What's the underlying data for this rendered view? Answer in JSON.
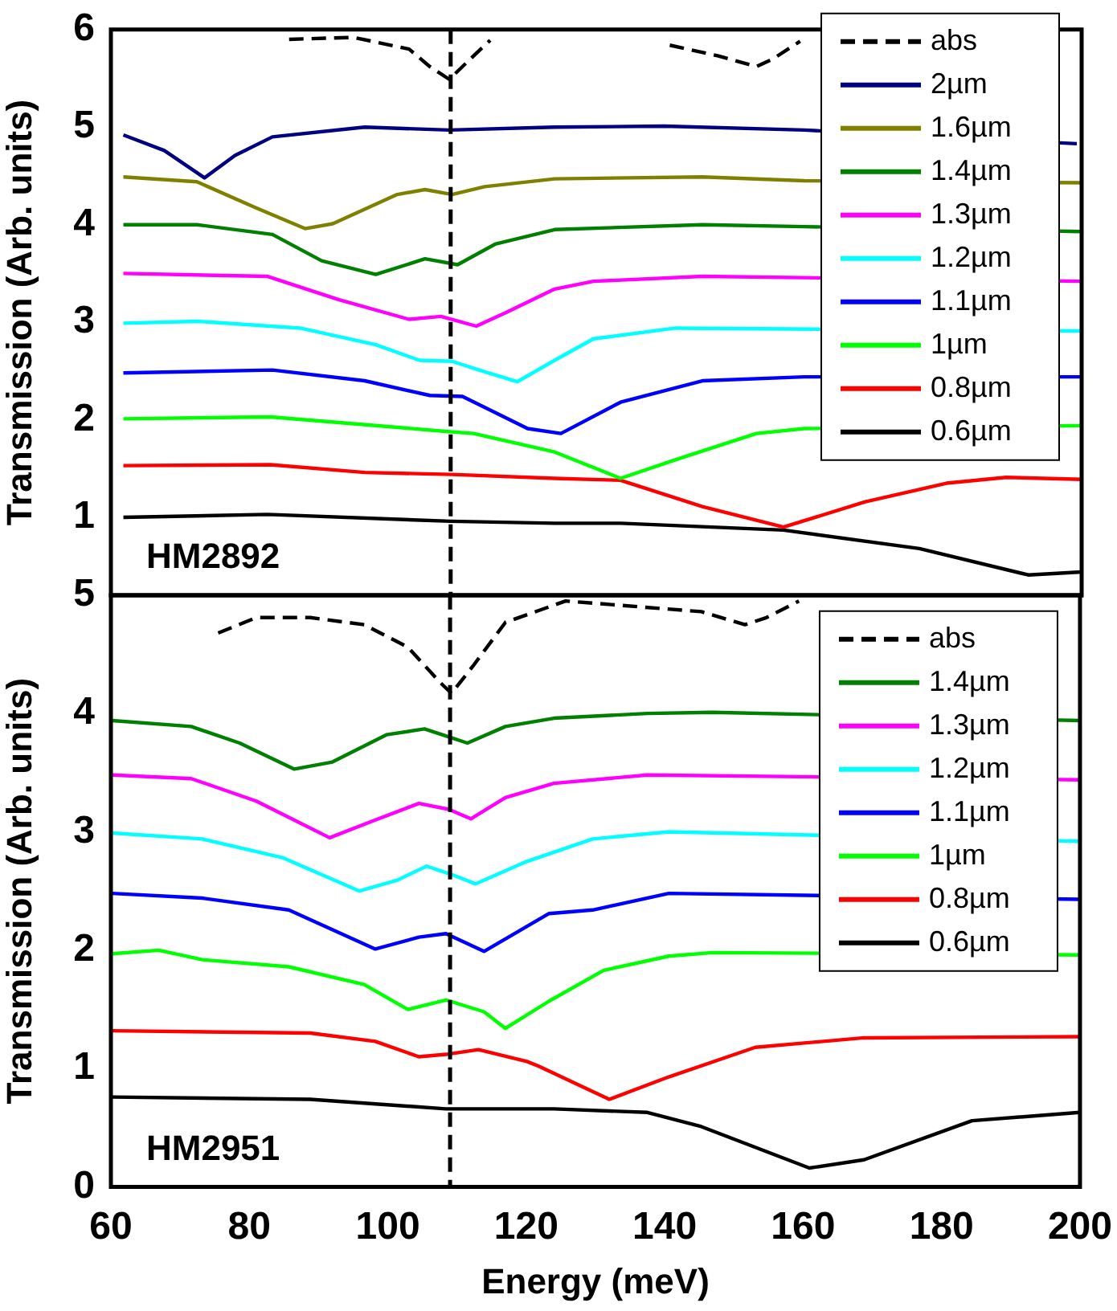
{
  "chart_data": [
    {
      "type": "line",
      "xlim": [
        60,
        200
      ],
      "xticks": [
        60,
        80,
        100,
        120,
        140,
        160,
        180,
        200
      ],
      "ylim": [
        0.2,
        6
      ],
      "yticks": [
        1,
        2,
        3,
        4,
        5,
        6
      ],
      "ylabel": "Transmission (Arb. units)",
      "tick_labels": "y",
      "grid": false,
      "legend": "top right",
      "marker": "none",
      "annotations": [
        "HM2892"
      ],
      "ref_lines": [
        {
          "axis": "x",
          "value": 109,
          "color": "#000000",
          "line_style": "dashed"
        }
      ],
      "series": [
        {
          "name": "abs",
          "color": "#000000",
          "line_style": "dashed",
          "x": [
            85.7,
            95,
            103,
            106,
            108.8,
            112.3,
            114.7,
            118,
            140.6,
            147.6,
            153.1,
            155.5,
            159.4
          ],
          "values": [
            5.9,
            5.92,
            5.8,
            5.62,
            5.49,
            5.73,
            5.89,
            null,
            5.84,
            5.73,
            5.62,
            5.7,
            5.88
          ]
        },
        {
          "name": "2µm",
          "color": "#000080",
          "x": [
            61.8,
            67.7,
            73.5,
            77.9,
            83.3,
            96.6,
            108.8,
            124,
            139.8,
            160,
            199.3
          ],
          "values": [
            4.92,
            4.76,
            4.48,
            4.71,
            4.9,
            5.0,
            4.97,
            5.0,
            5.01,
            4.97,
            4.83
          ]
        },
        {
          "name": "1.6µm",
          "color": "#808000",
          "x": [
            61.8,
            72.4,
            81,
            88,
            92,
            101.3,
            105.3,
            109.2,
            113.9,
            124,
            145.3,
            160,
            200
          ],
          "values": [
            4.49,
            4.44,
            4.17,
            3.96,
            4.01,
            4.31,
            4.36,
            4.31,
            4.39,
            4.47,
            4.49,
            4.45,
            4.43
          ]
        },
        {
          "name": "1.4µm",
          "color": "#008000",
          "x": [
            61.8,
            72.4,
            83.3,
            90.4,
            98.2,
            105.3,
            110,
            115.4,
            124,
            145.3,
            160,
            200
          ],
          "values": [
            4.0,
            4.0,
            3.9,
            3.63,
            3.49,
            3.65,
            3.59,
            3.8,
            3.95,
            4.0,
            3.98,
            3.93
          ]
        },
        {
          "name": "1.3µm",
          "color": "#ff00ff",
          "x": [
            61.8,
            82.6,
            92.9,
            103,
            107.6,
            112.7,
            117,
            124,
            129.6,
            145.3,
            200
          ],
          "values": [
            3.5,
            3.47,
            3.23,
            3.03,
            3.06,
            2.96,
            3.1,
            3.34,
            3.42,
            3.47,
            3.42
          ]
        },
        {
          "name": "1.2µm",
          "color": "#00ffff",
          "x": [
            61.8,
            72.4,
            87.3,
            98.2,
            104.5,
            109.2,
            113.1,
            118.6,
            124,
            129.6,
            141.4,
            200
          ],
          "values": [
            2.99,
            3.01,
            2.94,
            2.77,
            2.61,
            2.6,
            2.51,
            2.39,
            2.61,
            2.83,
            2.94,
            2.91
          ]
        },
        {
          "name": "1.1µm",
          "color": "#0000ff",
          "x": [
            61.8,
            83.3,
            96.6,
            106,
            110.7,
            120.1,
            124.9,
            133.5,
            145.3,
            160,
            200
          ],
          "values": [
            2.48,
            2.51,
            2.4,
            2.25,
            2.24,
            1.91,
            1.86,
            2.18,
            2.4,
            2.44,
            2.44
          ]
        },
        {
          "name": "1µm",
          "color": "#00ff00",
          "x": [
            61.8,
            83,
            106.8,
            112.3,
            124,
            133.5,
            141.4,
            153.1,
            160,
            200
          ],
          "values": [
            2.01,
            2.03,
            1.89,
            1.86,
            1.67,
            1.4,
            1.59,
            1.86,
            1.91,
            1.94
          ]
        },
        {
          "name": "0.8µm",
          "color": "#ff0000",
          "x": [
            61.8,
            83,
            96.6,
            109.2,
            124,
            133.5,
            145.3,
            157,
            168.8,
            180.5,
            189.1,
            200
          ],
          "values": [
            1.53,
            1.54,
            1.46,
            1.44,
            1.4,
            1.38,
            1.11,
            0.9,
            1.16,
            1.35,
            1.41,
            1.39
          ]
        },
        {
          "name": "0.6µm",
          "color": "#000000",
          "x": [
            61.8,
            82.6,
            109,
            124,
            133.5,
            157,
            176.6,
            192.3,
            200
          ],
          "values": [
            1.0,
            1.03,
            0.96,
            0.94,
            0.94,
            0.87,
            0.68,
            0.41,
            0.44
          ]
        }
      ]
    },
    {
      "type": "line",
      "xlim": [
        60,
        200
      ],
      "xticks": [
        60,
        80,
        100,
        120,
        140,
        160,
        180,
        200
      ],
      "ylim": [
        0,
        5
      ],
      "yticks": [
        0,
        1,
        2,
        3,
        4,
        5
      ],
      "xlabel": "Energy (meV)",
      "ylabel": "Transmission (Arb. units)",
      "grid": false,
      "legend": "top right",
      "marker": "none",
      "annotations": [
        "HM2951"
      ],
      "ref_lines": [
        {
          "axis": "x",
          "value": 109,
          "color": "#000000",
          "line_style": "dashed"
        }
      ],
      "series": [
        {
          "name": "abs",
          "color": "#000000",
          "line_style": "dashed",
          "x": [
            75.5,
            81,
            88.8,
            96.6,
            102.9,
            107.6,
            109.2,
            112.3,
            117,
            125.7,
            145.3,
            151.6,
            154.7,
            159.4
          ],
          "values": [
            4.68,
            4.81,
            4.81,
            4.75,
            4.56,
            4.26,
            4.17,
            4.4,
            4.77,
            4.95,
            4.86,
            4.75,
            4.81,
            4.95
          ]
        },
        {
          "name": "1.4µm",
          "color": "#008000",
          "x": [
            60.2,
            71.6,
            78.6,
            86.5,
            92,
            99.8,
            105.3,
            108.4,
            111.5,
            117,
            124,
            137.5,
            146.9,
            200
          ],
          "values": [
            3.94,
            3.89,
            3.75,
            3.53,
            3.59,
            3.82,
            3.87,
            3.81,
            3.75,
            3.89,
            3.96,
            4.0,
            4.01,
            3.94
          ]
        },
        {
          "name": "1.3µm",
          "color": "#ff00ff",
          "x": [
            60.2,
            71.6,
            81,
            91.6,
            98.2,
            104.5,
            108.8,
            112,
            117,
            124,
            137.5,
            200
          ],
          "values": [
            3.48,
            3.45,
            3.26,
            2.95,
            3.1,
            3.24,
            3.19,
            3.11,
            3.29,
            3.41,
            3.48,
            3.44
          ]
        },
        {
          "name": "1.2µm",
          "color": "#00ffff",
          "x": [
            60.2,
            73.2,
            84.9,
            95.9,
            101.3,
            105.6,
            109.2,
            112.7,
            120.1,
            129.6,
            140.6,
            200
          ],
          "values": [
            2.99,
            2.94,
            2.78,
            2.5,
            2.59,
            2.71,
            2.64,
            2.56,
            2.75,
            2.94,
            3.0,
            2.92
          ]
        },
        {
          "name": "1.1µm",
          "color": "#0000ff",
          "x": [
            60.2,
            73.2,
            85.7,
            98.2,
            104.5,
            108.4,
            113.9,
            123.3,
            129.6,
            140.6,
            200
          ],
          "values": [
            2.48,
            2.44,
            2.34,
            2.01,
            2.11,
            2.14,
            1.99,
            2.31,
            2.34,
            2.48,
            2.43
          ]
        },
        {
          "name": "1µm",
          "color": "#00ff00",
          "x": [
            60.2,
            66.9,
            73.2,
            85.7,
            96.6,
            102.9,
            108.4,
            113.9,
            117,
            123.3,
            131.2,
            140.6,
            146.9,
            200
          ],
          "values": [
            1.97,
            2.0,
            1.92,
            1.86,
            1.71,
            1.5,
            1.58,
            1.48,
            1.34,
            1.57,
            1.83,
            1.95,
            1.98,
            1.96
          ]
        },
        {
          "name": "0.8µm",
          "color": "#ff0000",
          "x": [
            60.2,
            88.8,
            98.2,
            104.5,
            108.4,
            113.1,
            120.1,
            121.8,
            132,
            140.6,
            153.1,
            168.8,
            200
          ],
          "values": [
            1.32,
            1.3,
            1.23,
            1.1,
            1.12,
            1.16,
            1.06,
            1.02,
            0.74,
            0.93,
            1.18,
            1.26,
            1.27
          ]
        },
        {
          "name": "0.6µm",
          "color": "#000000",
          "x": [
            60.2,
            88.8,
            108.4,
            124,
            137.5,
            145.3,
            160.9,
            168.8,
            184.4,
            200
          ],
          "values": [
            0.76,
            0.74,
            0.66,
            0.66,
            0.63,
            0.51,
            0.16,
            0.23,
            0.56,
            0.63
          ]
        }
      ]
    }
  ]
}
